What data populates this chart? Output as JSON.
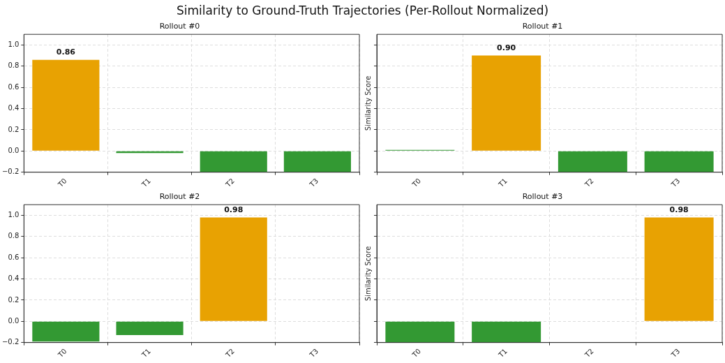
{
  "chart_data": [
    {
      "type": "bar",
      "title": "Rollout #0",
      "annotations": [
        "Similarity to Ground-Truth Trajectories (Per-Rollout Normalized)"
      ],
      "categories": [
        "T0",
        "T1",
        "T2",
        "T3"
      ],
      "values": [
        0.86,
        -0.02,
        -0.2,
        -0.2
      ],
      "colors": [
        "#e8a202",
        "#339933",
        "#339933",
        "#339933"
      ],
      "value_labels": [
        "0.86",
        null,
        null,
        null
      ],
      "ylim": [
        -0.2,
        1.1
      ],
      "yticks": [
        {
          "value": -0.2,
          "label": "−0.2"
        },
        {
          "value": 0,
          "label": "0.0"
        },
        {
          "value": 0.2,
          "label": "0.2"
        },
        {
          "value": 0.4,
          "label": "0.4"
        },
        {
          "value": 0.6,
          "label": "0.6"
        },
        {
          "value": 0.8,
          "label": "0.8"
        },
        {
          "value": 1,
          "label": "1.0"
        }
      ],
      "grid": true,
      "tick_labels": "xy"
    },
    {
      "type": "bar",
      "title": "Rollout #1",
      "ylabel": "Similarity Score",
      "categories": [
        "T0",
        "T1",
        "T2",
        "T3"
      ],
      "values": [
        0.01,
        0.9,
        -0.2,
        -0.2
      ],
      "colors": [
        "#339933",
        "#e8a202",
        "#339933",
        "#339933"
      ],
      "value_labels": [
        null,
        "0.90",
        null,
        null
      ],
      "ylim": [
        -0.2,
        1.1
      ],
      "yticks": [
        -0.2,
        0,
        0.2,
        0.4,
        0.6,
        0.8,
        1
      ],
      "grid": true,
      "tick_labels": "x"
    },
    {
      "type": "bar",
      "title": "Rollout #2",
      "categories": [
        "T0",
        "T1",
        "T2",
        "T3"
      ],
      "values": [
        -0.19,
        -0.13,
        0.98,
        0.0
      ],
      "colors": [
        "#339933",
        "#339933",
        "#e8a202",
        "#339933"
      ],
      "value_labels": [
        null,
        null,
        "0.98",
        null
      ],
      "ylim": [
        -0.2,
        1.1
      ],
      "yticks": [
        {
          "value": -0.2,
          "label": "−0.2"
        },
        {
          "value": 0,
          "label": "0.0"
        },
        {
          "value": 0.2,
          "label": "0.2"
        },
        {
          "value": 0.4,
          "label": "0.4"
        },
        {
          "value": 0.6,
          "label": "0.6"
        },
        {
          "value": 0.8,
          "label": "0.8"
        },
        {
          "value": 1,
          "label": "1.0"
        }
      ],
      "grid": true,
      "tick_labels": "xy"
    },
    {
      "type": "bar",
      "title": "Rollout #3",
      "ylabel": "Similarity Score",
      "categories": [
        "T0",
        "T1",
        "T2",
        "T3"
      ],
      "values": [
        -0.2,
        -0.2,
        0.0,
        0.98
      ],
      "colors": [
        "#339933",
        "#339933",
        "#339933",
        "#e8a202"
      ],
      "value_labels": [
        null,
        null,
        null,
        "0.98"
      ],
      "ylim": [
        -0.2,
        1.1
      ],
      "yticks": [
        -0.2,
        0,
        0.2,
        0.4,
        0.6,
        0.8,
        1
      ],
      "grid": true,
      "tick_labels": "x"
    }
  ]
}
